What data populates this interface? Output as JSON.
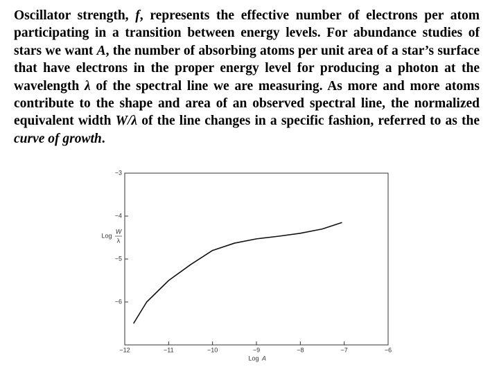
{
  "paragraph": [
    "Oscillator strength, ",
    "f",
    ", represents the effective number of electrons per atom participating in a transition between energy levels. For abundance studies of stars we want ",
    "A",
    ", the number of absorbing atoms per unit area of a star’s surface that have electrons in the proper energy level for producing a photon at the wavelength ",
    "λ",
    " of the spectral line we are measuring. As more and more atoms contribute to the shape and area of an observed spectral line, the normalized equivalent width ",
    "W/λ",
    " of the line changes in a specific fashion, referred to as the ",
    "curve of growth",
    "."
  ],
  "chart_data": {
    "type": "line",
    "xlabel_parts": [
      "Log",
      "A"
    ],
    "ylabel_parts": [
      "Log",
      "W",
      "λ"
    ],
    "x": [
      -11.8,
      -11.5,
      -11,
      -10.5,
      -10,
      -9.5,
      -9,
      -8.5,
      -8,
      -7.5,
      -7.05
    ],
    "series": [
      {
        "color": "#111111",
        "values": [
          -6.5,
          -6.0,
          -5.5,
          -5.13,
          -4.8,
          -4.63,
          -4.53,
          -4.47,
          -4.4,
          -4.3,
          -4.15
        ]
      }
    ],
    "xlim": [
      -12,
      -6
    ],
    "ylim": [
      -7,
      -3
    ],
    "xticks": [
      {
        "value": -12,
        "label": "−12"
      },
      {
        "value": -11,
        "label": "−11"
      },
      {
        "value": -10,
        "label": "−10"
      },
      {
        "value": -9,
        "label": "−9"
      },
      {
        "value": -8,
        "label": "−8"
      },
      {
        "value": -7,
        "label": "−7"
      },
      {
        "value": -6,
        "label": "−6"
      }
    ],
    "yticks": [
      {
        "value": -3,
        "label": "−3"
      },
      {
        "value": -4,
        "label": "−4"
      },
      {
        "value": -5,
        "label": "−5"
      },
      {
        "value": -6,
        "label": "−6"
      }
    ]
  }
}
